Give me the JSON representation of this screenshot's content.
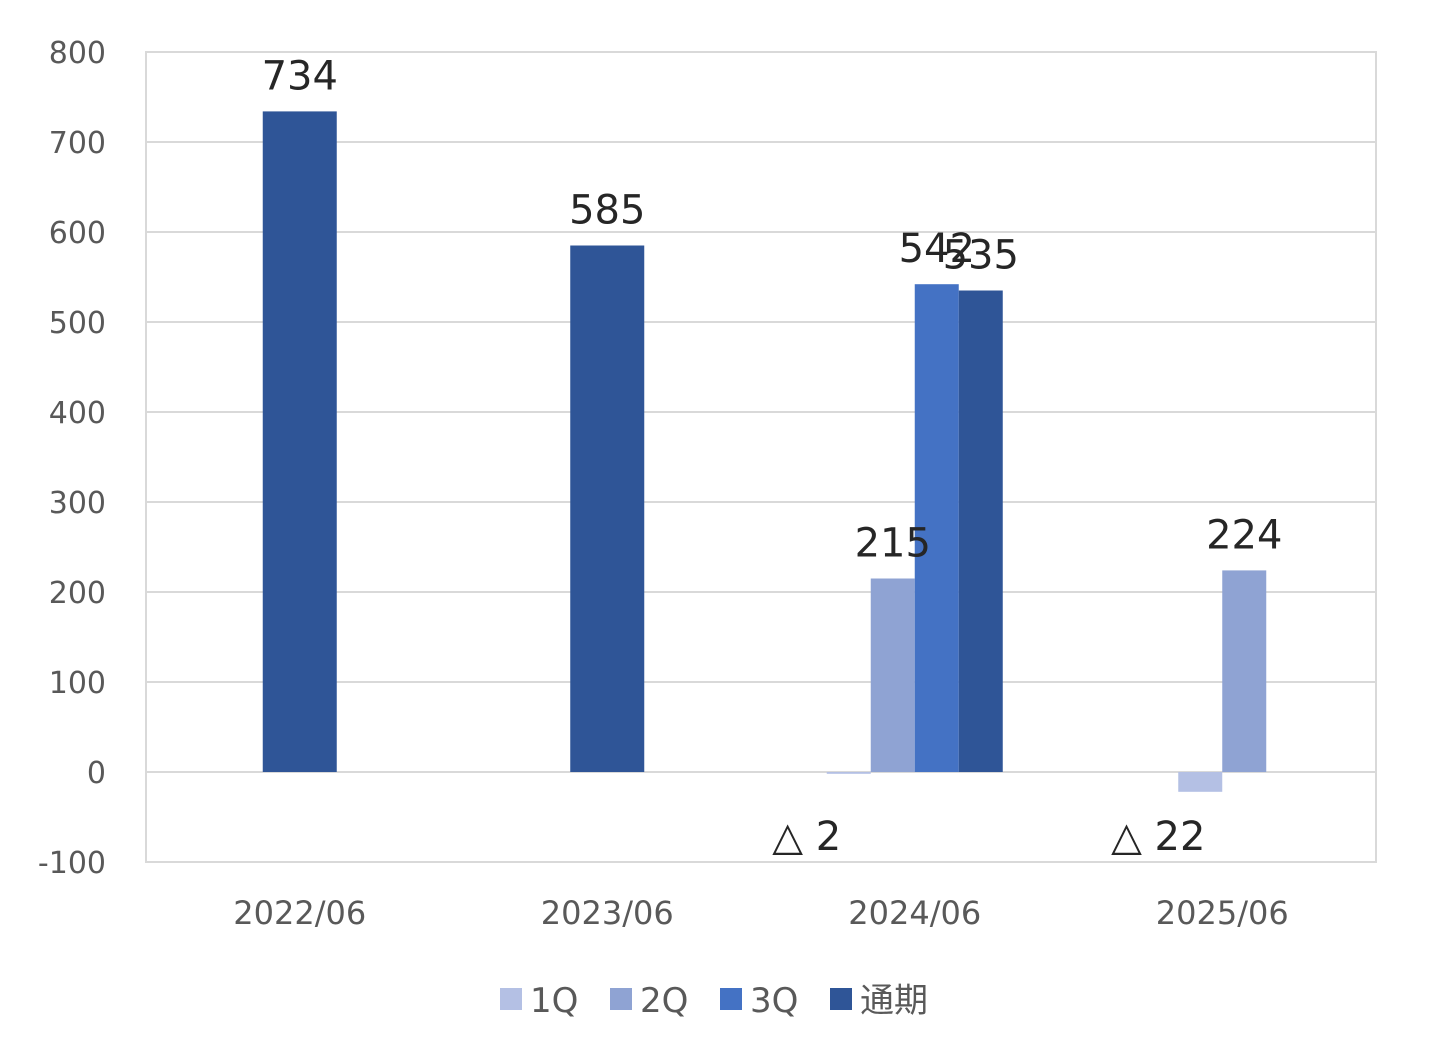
{
  "chart_data": {
    "type": "bar",
    "title": "",
    "xlabel": "",
    "ylabel": "",
    "categories": [
      "2022/06",
      "2023/06",
      "2024/06",
      "2025/06"
    ],
    "series": [
      {
        "name": "1Q",
        "color": "#b4c0e4",
        "values": [
          null,
          null,
          -2,
          -22
        ],
        "labels": [
          "",
          "",
          "△ 2",
          "△ 22"
        ]
      },
      {
        "name": "2Q",
        "color": "#8fa3d3",
        "values": [
          null,
          null,
          215,
          224
        ],
        "labels": [
          "",
          "",
          "215",
          "224"
        ]
      },
      {
        "name": "3Q",
        "color": "#4472c4",
        "values": [
          null,
          null,
          542,
          null
        ],
        "labels": [
          "",
          "",
          "542",
          ""
        ]
      },
      {
        "name": "通期",
        "color": "#2f5597",
        "values": [
          734,
          585,
          535,
          null
        ],
        "labels": [
          "734",
          "585",
          "535",
          ""
        ]
      }
    ],
    "ylim": [
      -100,
      800
    ],
    "yticks": [
      "800",
      "700",
      "600",
      "500",
      "400",
      "300",
      "200",
      "100",
      "0",
      "-100"
    ],
    "grid": true,
    "legend_position": "bottom"
  }
}
